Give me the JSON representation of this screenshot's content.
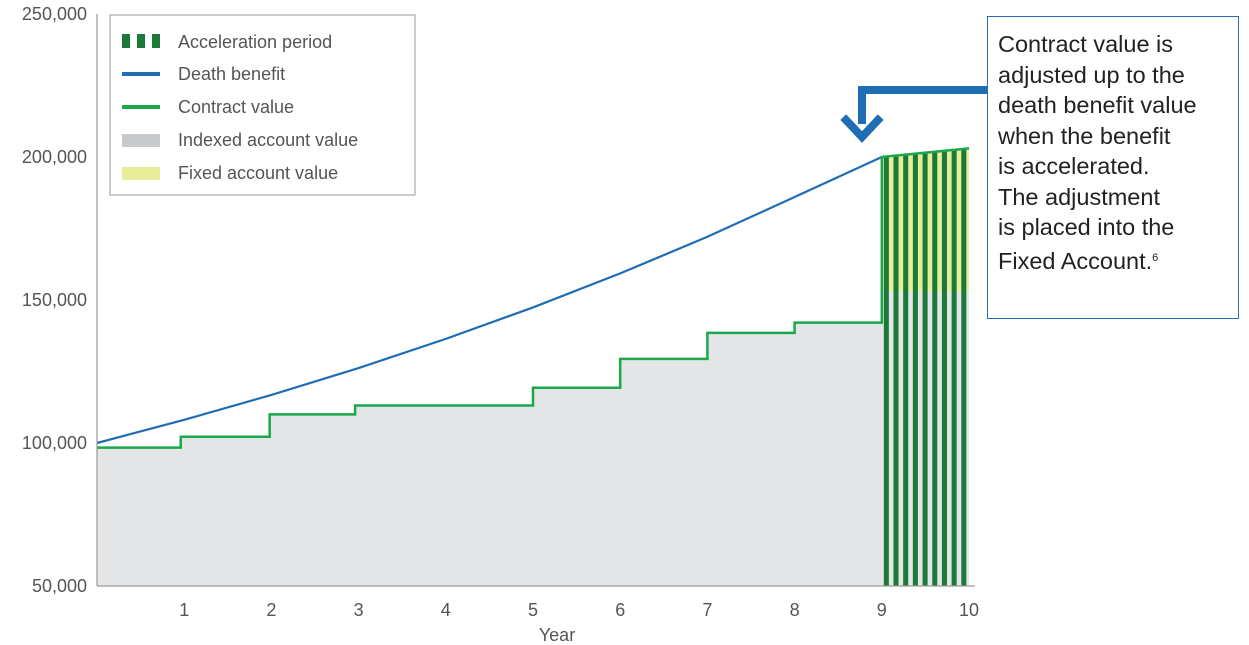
{
  "chart_data": {
    "type": "area",
    "xlabel": "Year",
    "ylabel": "",
    "ylim": [
      50000,
      250000
    ],
    "xlim": [
      0,
      10
    ],
    "x_ticks": [
      "1",
      "2",
      "3",
      "4",
      "5",
      "6",
      "7",
      "8",
      "9",
      "10"
    ],
    "y_ticks": [
      "250,000",
      "200,000",
      "150,000",
      "100,000",
      "50,000"
    ],
    "y_tick_values": [
      250000,
      200000,
      150000,
      100000,
      50000
    ],
    "grid": false,
    "legend_position": "top-left",
    "legend": [
      {
        "label": "Acceleration period",
        "swatch": "stripes",
        "color": "#1b7a3a"
      },
      {
        "label": "Death benefit",
        "swatch": "line",
        "color": "#1f6db4"
      },
      {
        "label": "Contract value",
        "swatch": "line",
        "color": "#1aa84b"
      },
      {
        "label": "Indexed account value",
        "swatch": "box",
        "color": "#c8c9cb"
      },
      {
        "label": "Fixed account value",
        "swatch": "box",
        "color": "#e6ee9a"
      }
    ],
    "series": [
      {
        "name": "Death benefit",
        "kind": "line",
        "color": "#1f6db4",
        "x": [
          0,
          1,
          2,
          3,
          4,
          5,
          6,
          7,
          8,
          9
        ],
        "values": [
          100000,
          108100,
          116800,
          126200,
          136400,
          147400,
          159300,
          172100,
          186000,
          200000
        ]
      },
      {
        "name": "Contract value",
        "kind": "step",
        "color": "#1aa84b",
        "x": [
          0,
          0.96,
          1.98,
          2.96,
          5.0,
          6.0,
          7.0,
          8.0,
          9.0,
          10.0
        ],
        "values": [
          98400,
          102200,
          110000,
          113100,
          119300,
          129400,
          138500,
          142100,
          200000,
          203000
        ]
      },
      {
        "name": "Indexed account value",
        "kind": "area",
        "color": "#e4e5e6",
        "x": [
          0,
          0.96,
          1.98,
          2.96,
          5.0,
          6.0,
          7.0,
          8.0,
          9.0,
          10.0
        ],
        "values": [
          98400,
          102200,
          110000,
          113100,
          119300,
          129400,
          138500,
          142100,
          153000,
          153000
        ]
      },
      {
        "name": "Fixed account value",
        "kind": "area",
        "color": "#e6ee9a",
        "x": [
          9.0,
          10.0
        ],
        "bottom": [
          153000,
          153000
        ],
        "values": [
          200000,
          203000
        ]
      }
    ],
    "acceleration_period": {
      "x_start": 9.0,
      "x_end": 10.0,
      "stripe_color": "#1b7a3a"
    },
    "annotation": {
      "lines": [
        "Contract value is",
        "adjusted up to the",
        "death benefit value",
        "when the benefit",
        "is accelerated.",
        "The adjustment",
        "is placed into the",
        "Fixed Account."
      ],
      "footnote": "6",
      "arrow_color": "#1f6db4",
      "points_to": {
        "x": 9.0,
        "y": 200000
      }
    }
  }
}
